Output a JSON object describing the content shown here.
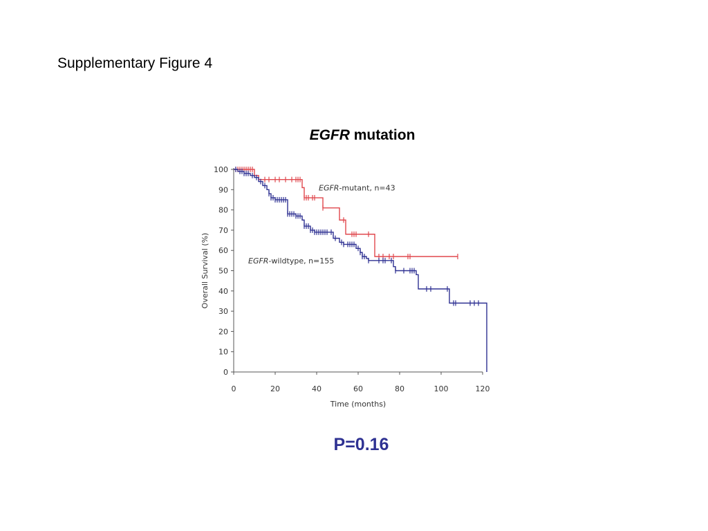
{
  "page": {
    "heading": "Supplementary Figure 4"
  },
  "figure": {
    "title_gene": "EGFR",
    "title_rest": " mutation",
    "p_value": "P=0.16"
  },
  "colors": {
    "mutant": "#e0474c",
    "wildtype": "#2e3192",
    "axis": "#555555",
    "pvalue": "#2e3192"
  },
  "chart_data": {
    "type": "line",
    "subtype": "kaplan-meier",
    "xlabel": "Time (months)",
    "ylabel": "Overall Survival (%)",
    "xlim": [
      0,
      120
    ],
    "ylim": [
      0,
      100
    ],
    "xticks": [
      0,
      20,
      40,
      60,
      80,
      100,
      120
    ],
    "yticks": [
      0,
      10,
      20,
      30,
      40,
      50,
      60,
      70,
      80,
      90,
      100
    ],
    "grid": false,
    "series": [
      {
        "key": "mutant",
        "label_gene": "EGFR",
        "label_rest": "-mutant, n=43",
        "label_at": [
          41,
          91
        ],
        "steps": [
          [
            0,
            100
          ],
          [
            10,
            97
          ],
          [
            12,
            95
          ],
          [
            33,
            91
          ],
          [
            34,
            86
          ],
          [
            43,
            81
          ],
          [
            51,
            75
          ],
          [
            54,
            68
          ],
          [
            68,
            57
          ],
          [
            108,
            57
          ]
        ],
        "censor_times": [
          1,
          2,
          3,
          4,
          5,
          6,
          7,
          8,
          9,
          15,
          17,
          20,
          22,
          25,
          28,
          30,
          31,
          32,
          34,
          35,
          36,
          38,
          39,
          43,
          53,
          57,
          58,
          59,
          65,
          70,
          72,
          75,
          77,
          84,
          85,
          108
        ]
      },
      {
        "key": "wildtype",
        "label_gene": "EGFR",
        "label_rest": "-wildtype, n=155",
        "label_at": [
          7,
          55
        ],
        "steps": [
          [
            0,
            100
          ],
          [
            2,
            99
          ],
          [
            5,
            98
          ],
          [
            8,
            97
          ],
          [
            10,
            96
          ],
          [
            12,
            94
          ],
          [
            14,
            92
          ],
          [
            16,
            90
          ],
          [
            17,
            88
          ],
          [
            18,
            86
          ],
          [
            20,
            85
          ],
          [
            26,
            78
          ],
          [
            30,
            77
          ],
          [
            33,
            75
          ],
          [
            34,
            72
          ],
          [
            37,
            70
          ],
          [
            39,
            69
          ],
          [
            48,
            66
          ],
          [
            51,
            64
          ],
          [
            53,
            63
          ],
          [
            59,
            61
          ],
          [
            61,
            59
          ],
          [
            62,
            57
          ],
          [
            64,
            56
          ],
          [
            65,
            55
          ],
          [
            77,
            52
          ],
          [
            78,
            50
          ],
          [
            88,
            48
          ],
          [
            89,
            41
          ],
          [
            104,
            34
          ],
          [
            122,
            34
          ],
          [
            122,
            0
          ]
        ],
        "censor_times": [
          1,
          3,
          4,
          5,
          6,
          7,
          9,
          11,
          13,
          15,
          17,
          18,
          19,
          20,
          21,
          22,
          23,
          24,
          25,
          26,
          27,
          28,
          29,
          30,
          31,
          32,
          34,
          35,
          36,
          37,
          38,
          39,
          40,
          41,
          42,
          43,
          44,
          45,
          47,
          49,
          52,
          53,
          55,
          56,
          57,
          58,
          60,
          61,
          62,
          63,
          65,
          70,
          72,
          73,
          76,
          78,
          82,
          85,
          86,
          87,
          93,
          95,
          103,
          106,
          107,
          114,
          116,
          118
        ]
      }
    ]
  }
}
